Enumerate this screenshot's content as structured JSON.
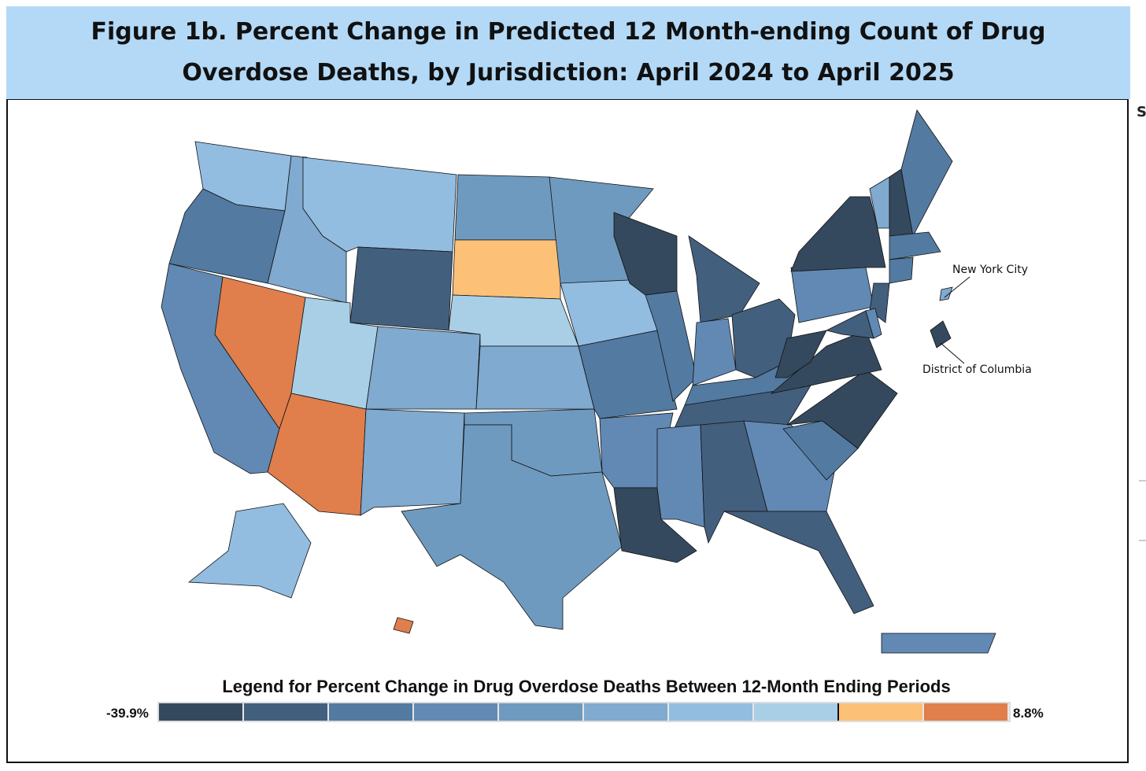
{
  "title": "Figure 1b. Percent Change in Predicted 12 Month-ending Count of Drug Overdose Deaths, by Jurisdiction: April 2024 to April 2025",
  "side_letter": "S",
  "legend": {
    "title": "Legend for Percent Change in Drug Overdose Deaths Between 12-Month Ending Periods",
    "min_label": "-39.9%",
    "max_label": "8.8%",
    "bins": [
      "#34495e",
      "#435f7e",
      "#537aa0",
      "#6189b4",
      "#6f9abf",
      "#80aacf",
      "#92bde0",
      "#a8cfe6",
      "#fdc077",
      "#e07e4c"
    ]
  },
  "insets": {
    "nyc": "New York City",
    "dc": "District of Columbia"
  },
  "jurisdiction_bins": {
    "Washington": 6,
    "Oregon": 2,
    "California": 3,
    "Nevada": 9,
    "Idaho": 5,
    "Montana": 6,
    "Wyoming": 1,
    "Utah": 7,
    "Arizona": 9,
    "Colorado": 5,
    "New Mexico": 5,
    "North Dakota": 4,
    "South Dakota": 8,
    "Nebraska": 7,
    "Kansas": 5,
    "Oklahoma": 4,
    "Texas": 4,
    "Minnesota": 4,
    "Iowa": 6,
    "Missouri": 2,
    "Arkansas": 3,
    "Louisiana": 0,
    "Wisconsin": 0,
    "Illinois": 2,
    "Michigan": 1,
    "Indiana": 3,
    "Ohio": 1,
    "Kentucky": 2,
    "Tennessee": 1,
    "Mississippi": 3,
    "Alabama": 1,
    "Georgia": 3,
    "Florida": 1,
    "South Carolina": 2,
    "North Carolina": 0,
    "Virginia": 0,
    "West Virginia": 0,
    "Pennsylvania": 3,
    "New York": 0,
    "Vermont": 5,
    "New Hampshire": 0,
    "Maine": 2,
    "Massachusetts": 2,
    "Connecticut": 2,
    "New Jersey": 1,
    "Maryland": 1,
    "Delaware": 3,
    "District of Columbia": 0,
    "New York City": 5,
    "Alaska": 6,
    "Hawaii": 9,
    "Puerto Rico": 3
  }
}
